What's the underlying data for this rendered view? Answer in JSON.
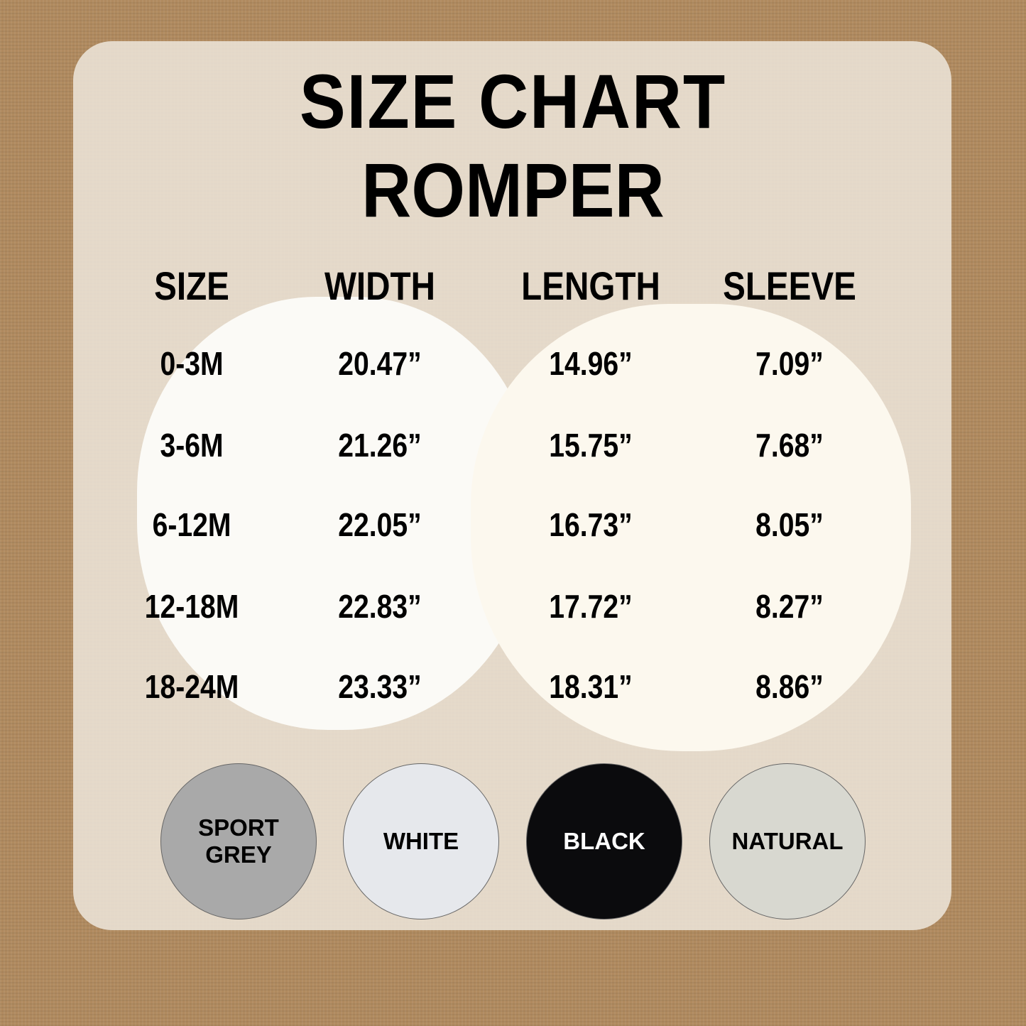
{
  "title": "SIZE CHART",
  "subtitle": "ROMPER",
  "headers": [
    "SIZE",
    "WIDTH",
    "LENGTH",
    "SLEEVE"
  ],
  "rows": [
    [
      "0-3M",
      "20.47”",
      "14.96”",
      "7.09”"
    ],
    [
      "3-6M",
      "21.26”",
      "15.75”",
      "7.68”"
    ],
    [
      "6-12M",
      "22.05”",
      "16.73”",
      "8.05”"
    ],
    [
      "12-18M",
      "22.83”",
      "17.72”",
      "8.27”"
    ],
    [
      "18-24M",
      "23.33”",
      "18.31”",
      "8.86”"
    ]
  ],
  "colors": [
    {
      "label_line1": "SPORT",
      "label_line2": "GREY",
      "swatch": "#a9a9a9",
      "text": "#000000"
    },
    {
      "label_line1": "WHITE",
      "label_line2": "",
      "swatch": "#e6e8ec",
      "text": "#000000"
    },
    {
      "label_line1": "BLACK",
      "label_line2": "",
      "swatch": "#0b0b0d",
      "text": "#ffffff"
    },
    {
      "label_line1": "NATURAL",
      "label_line2": "",
      "swatch": "#d8d8d0",
      "text": "#000000"
    }
  ]
}
